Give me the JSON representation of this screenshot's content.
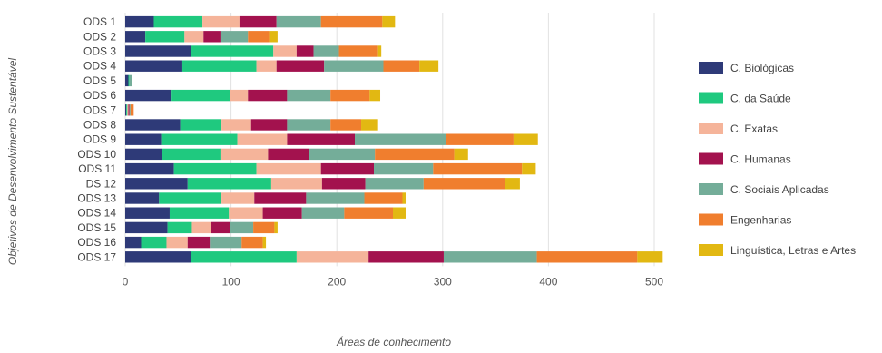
{
  "chart_data": {
    "type": "bar",
    "orientation": "horizontal",
    "stacked": true,
    "xlabel": "Áreas de conhecimento",
    "ylabel": "Objetivos de Desenvolvimento Sustentável",
    "xlim": [
      0,
      500
    ],
    "xticks": [
      0,
      100,
      200,
      300,
      400,
      500
    ],
    "grid": true,
    "legend_position": "right",
    "categories": [
      "ODS 1",
      "ODS 2",
      "ODS 3",
      "ODS 4",
      "ODS 5",
      "ODS 6",
      "ODS 7",
      "ODS 8",
      "ODS 9",
      "ODS 10",
      "ODS 11",
      "DS 12",
      "ODS 13",
      "ODS 14",
      "ODS 15",
      "ODS 16",
      "ODS 17"
    ],
    "series": [
      {
        "name": "C. Biológicas",
        "color": "#2e3a78",
        "values": [
          27,
          19,
          62,
          54,
          3,
          43,
          1,
          52,
          34,
          35,
          46,
          59,
          32,
          42,
          40,
          15,
          62
        ]
      },
      {
        "name": "C. da Saúde",
        "color": "#1fc97f",
        "values": [
          46,
          37,
          78,
          70,
          1,
          56,
          1,
          39,
          72,
          55,
          78,
          79,
          59,
          56,
          23,
          24,
          100
        ]
      },
      {
        "name": "C. Exatas",
        "color": "#f5b49a",
        "values": [
          35,
          18,
          22,
          19,
          0,
          17,
          1,
          28,
          47,
          45,
          61,
          48,
          31,
          32,
          18,
          20,
          68
        ]
      },
      {
        "name": "C. Humanas",
        "color": "#a3124e",
        "values": [
          35,
          16,
          16,
          45,
          0,
          37,
          1,
          34,
          64,
          39,
          50,
          41,
          49,
          37,
          18,
          21,
          71
        ]
      },
      {
        "name": "C. Sociais Aplicadas",
        "color": "#74ad99",
        "values": [
          42,
          26,
          24,
          56,
          2,
          41,
          1,
          41,
          86,
          62,
          56,
          55,
          55,
          40,
          22,
          30,
          88
        ]
      },
      {
        "name": "Engenharias",
        "color": "#f07e2e",
        "values": [
          58,
          20,
          37,
          34,
          0,
          37,
          3,
          29,
          64,
          75,
          84,
          77,
          36,
          46,
          20,
          20,
          95
        ]
      },
      {
        "name": "Linguística, Letras e Artes",
        "color": "#e2b812",
        "values": [
          12,
          8,
          3,
          18,
          0,
          10,
          0,
          16,
          23,
          13,
          13,
          14,
          3,
          12,
          3,
          3,
          24
        ]
      }
    ]
  }
}
